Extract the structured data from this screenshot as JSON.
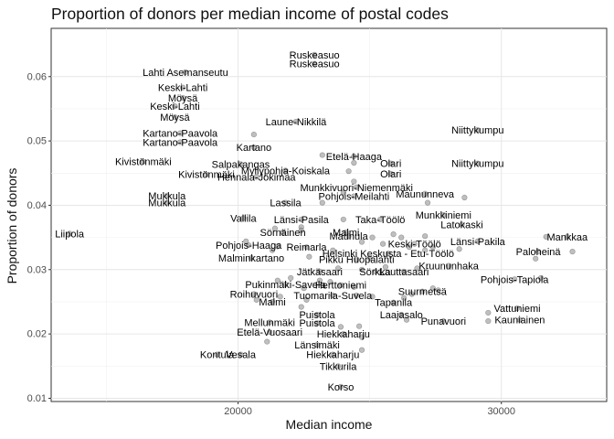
{
  "chart_data": {
    "type": "scatter",
    "title": "Proportion of donors per median income of postal codes",
    "xlabel": "Median income",
    "ylabel": "Proportion of donors",
    "xlim": [
      12900,
      34000
    ],
    "ylim": [
      0.0095,
      0.0675
    ],
    "xticks": [
      20000,
      30000
    ],
    "yticks": [
      0.01,
      0.02,
      0.03,
      0.04,
      0.05,
      0.06
    ],
    "ytick_labels": [
      "0.01",
      "0.02",
      "0.03",
      "0.04",
      "0.05",
      "0.06"
    ],
    "xtick_labels": [
      "20000",
      "30000"
    ],
    "grid": true,
    "point_color": "#8a8a8a",
    "points": [
      {
        "x": 13600,
        "y": 0.0356,
        "label": "Liipola"
      },
      {
        "x": 18000,
        "y": 0.0607,
        "label": "Lahti Asemanseutu"
      },
      {
        "x": 17900,
        "y": 0.0583,
        "label": "Keski-Lahti"
      },
      {
        "x": 17900,
        "y": 0.0567,
        "label": "Möysä"
      },
      {
        "x": 17600,
        "y": 0.0554,
        "label": "Keski-Lahti"
      },
      {
        "x": 17600,
        "y": 0.0537,
        "label": "Möysä"
      },
      {
        "x": 17800,
        "y": 0.0512,
        "label": "Kartano-Paavola"
      },
      {
        "x": 17800,
        "y": 0.0498,
        "label": "Kartano-Paavola"
      },
      {
        "x": 20600,
        "y": 0.051,
        "label": ""
      },
      {
        "x": 20600,
        "y": 0.049,
        "label": "Kartano"
      },
      {
        "x": 16400,
        "y": 0.0468,
        "label": "Kivistönmäki"
      },
      {
        "x": 18800,
        "y": 0.0448,
        "label": "Kivistönmäki"
      },
      {
        "x": 20100,
        "y": 0.0464,
        "label": "Salpakangas"
      },
      {
        "x": 21800,
        "y": 0.0454,
        "label": "Myllypohja-Koiskala"
      },
      {
        "x": 20700,
        "y": 0.0444,
        "label": "Hennala-Jokimaa"
      },
      {
        "x": 22200,
        "y": 0.053,
        "label": "Laune-Nikkilä"
      },
      {
        "x": 22900,
        "y": 0.0634,
        "label": "Ruskeasuo"
      },
      {
        "x": 22900,
        "y": 0.062,
        "label": "Ruskeasuo"
      },
      {
        "x": 17300,
        "y": 0.0415,
        "label": "Mukkula"
      },
      {
        "x": 17300,
        "y": 0.0404,
        "label": "Mukkula"
      },
      {
        "x": 20200,
        "y": 0.038,
        "label": "Vallila"
      },
      {
        "x": 21800,
        "y": 0.0404,
        "label": "Lassila"
      },
      {
        "x": 23200,
        "y": 0.0478,
        "label": ""
      },
      {
        "x": 24400,
        "y": 0.0476,
        "label": "Etelä-Haaga"
      },
      {
        "x": 24200,
        "y": 0.0453,
        "label": ""
      },
      {
        "x": 24400,
        "y": 0.0466,
        "label": ""
      },
      {
        "x": 25800,
        "y": 0.0465,
        "label": "Olari"
      },
      {
        "x": 25800,
        "y": 0.0449,
        "label": "Olari"
      },
      {
        "x": 24400,
        "y": 0.0437,
        "label": ""
      },
      {
        "x": 24500,
        "y": 0.0428,
        "label": "Munkkivuori-Niemenmäki"
      },
      {
        "x": 24400,
        "y": 0.0414,
        "label": "Pohjois-Meilahti"
      },
      {
        "x": 23200,
        "y": 0.0404,
        "label": ""
      },
      {
        "x": 24000,
        "y": 0.042,
        "label": ""
      },
      {
        "x": 29100,
        "y": 0.0517,
        "label": "Niittykumpu"
      },
      {
        "x": 29100,
        "y": 0.0465,
        "label": "Niittykumpu"
      },
      {
        "x": 28600,
        "y": 0.0412,
        "label": ""
      },
      {
        "x": 27100,
        "y": 0.0418,
        "label": "Maununneva"
      },
      {
        "x": 27200,
        "y": 0.0404,
        "label": ""
      },
      {
        "x": 27800,
        "y": 0.0385,
        "label": "Munkkiniemi"
      },
      {
        "x": 28500,
        "y": 0.037,
        "label": "Latokaski"
      },
      {
        "x": 22400,
        "y": 0.0378,
        "label": "Länsi-Pasila"
      },
      {
        "x": 22400,
        "y": 0.0366,
        "label": ""
      },
      {
        "x": 22400,
        "y": 0.0361,
        "label": ""
      },
      {
        "x": 21400,
        "y": 0.0364,
        "label": ""
      },
      {
        "x": 21700,
        "y": 0.0358,
        "label": "Sörnäinen"
      },
      {
        "x": 20300,
        "y": 0.0344,
        "label": ""
      },
      {
        "x": 20400,
        "y": 0.0338,
        "label": "Pohjois-Haaga"
      },
      {
        "x": 21500,
        "y": 0.0336,
        "label": ""
      },
      {
        "x": 21300,
        "y": 0.033,
        "label": ""
      },
      {
        "x": 20500,
        "y": 0.0318,
        "label": "Malminkartano"
      },
      {
        "x": 22600,
        "y": 0.0335,
        "label": "Reimarla"
      },
      {
        "x": 22700,
        "y": 0.032,
        "label": ""
      },
      {
        "x": 23600,
        "y": 0.033,
        "label": ""
      },
      {
        "x": 24000,
        "y": 0.0378,
        "label": ""
      },
      {
        "x": 25400,
        "y": 0.0378,
        "label": "Taka-Töölö"
      },
      {
        "x": 24100,
        "y": 0.0358,
        "label": "Malmi"
      },
      {
        "x": 24200,
        "y": 0.0352,
        "label": "Maunula"
      },
      {
        "x": 24700,
        "y": 0.0343,
        "label": ""
      },
      {
        "x": 25100,
        "y": 0.035,
        "label": ""
      },
      {
        "x": 25500,
        "y": 0.034,
        "label": ""
      },
      {
        "x": 25900,
        "y": 0.0355,
        "label": ""
      },
      {
        "x": 26200,
        "y": 0.035,
        "label": ""
      },
      {
        "x": 26500,
        "y": 0.0335,
        "label": ""
      },
      {
        "x": 26700,
        "y": 0.034,
        "label": "Keski-Töölö"
      },
      {
        "x": 27100,
        "y": 0.0352,
        "label": ""
      },
      {
        "x": 27100,
        "y": 0.033,
        "label": ""
      },
      {
        "x": 27400,
        "y": 0.0335,
        "label": ""
      },
      {
        "x": 25700,
        "y": 0.0325,
        "label": "Helsinki Keskusta - Etu-Töölö"
      },
      {
        "x": 25000,
        "y": 0.0318,
        "label": ""
      },
      {
        "x": 24500,
        "y": 0.0316,
        "label": "Pikku Huopalahti"
      },
      {
        "x": 23800,
        "y": 0.0302,
        "label": ""
      },
      {
        "x": 23100,
        "y": 0.0297,
        "label": "Jätkäsaari"
      },
      {
        "x": 24700,
        "y": 0.03,
        "label": ""
      },
      {
        "x": 25200,
        "y": 0.0297,
        "label": "Sörkka"
      },
      {
        "x": 25600,
        "y": 0.0304,
        "label": ""
      },
      {
        "x": 26300,
        "y": 0.0297,
        "label": "Lauttasaari"
      },
      {
        "x": 26800,
        "y": 0.0302,
        "label": ""
      },
      {
        "x": 28400,
        "y": 0.0332,
        "label": ""
      },
      {
        "x": 29100,
        "y": 0.0344,
        "label": "Länsi-Pakila"
      },
      {
        "x": 28000,
        "y": 0.0306,
        "label": "Kruununhaka"
      },
      {
        "x": 31700,
        "y": 0.0351,
        "label": ""
      },
      {
        "x": 32500,
        "y": 0.0351,
        "label": "Mankkaa"
      },
      {
        "x": 31400,
        "y": 0.0328,
        "label": "Paloheinä"
      },
      {
        "x": 32700,
        "y": 0.0328,
        "label": ""
      },
      {
        "x": 31300,
        "y": 0.0317,
        "label": ""
      },
      {
        "x": 21500,
        "y": 0.0283,
        "label": ""
      },
      {
        "x": 21800,
        "y": 0.0277,
        "label": "Pukinmäki-Savela"
      },
      {
        "x": 22000,
        "y": 0.0287,
        "label": ""
      },
      {
        "x": 22500,
        "y": 0.0271,
        "label": ""
      },
      {
        "x": 23100,
        "y": 0.0283,
        "label": ""
      },
      {
        "x": 23500,
        "y": 0.0281,
        "label": ""
      },
      {
        "x": 23900,
        "y": 0.0276,
        "label": "Herttoniemi"
      },
      {
        "x": 24400,
        "y": 0.0273,
        "label": ""
      },
      {
        "x": 20600,
        "y": 0.0262,
        "label": "Roihuvuori"
      },
      {
        "x": 21600,
        "y": 0.0258,
        "label": ""
      },
      {
        "x": 20700,
        "y": 0.0253,
        "label": ""
      },
      {
        "x": 21300,
        "y": 0.025,
        "label": "Malmi"
      },
      {
        "x": 22600,
        "y": 0.0253,
        "label": ""
      },
      {
        "x": 23600,
        "y": 0.026,
        "label": "Tuomarila-Suvela"
      },
      {
        "x": 24500,
        "y": 0.026,
        "label": ""
      },
      {
        "x": 25100,
        "y": 0.0258,
        "label": ""
      },
      {
        "x": 25900,
        "y": 0.0249,
        "label": "Tapanila"
      },
      {
        "x": 26300,
        "y": 0.0256,
        "label": ""
      },
      {
        "x": 26600,
        "y": 0.0262,
        "label": ""
      },
      {
        "x": 27000,
        "y": 0.0266,
        "label": "Suurmetsä"
      },
      {
        "x": 27400,
        "y": 0.0271,
        "label": ""
      },
      {
        "x": 27600,
        "y": 0.0268,
        "label": ""
      },
      {
        "x": 26200,
        "y": 0.023,
        "label": "Laajasalo"
      },
      {
        "x": 26400,
        "y": 0.0222,
        "label": ""
      },
      {
        "x": 27800,
        "y": 0.022,
        "label": "Punavuori"
      },
      {
        "x": 29500,
        "y": 0.0233,
        "label": ""
      },
      {
        "x": 29500,
        "y": 0.022,
        "label": ""
      },
      {
        "x": 30500,
        "y": 0.0285,
        "label": "Pohjois-Tapiola"
      },
      {
        "x": 31500,
        "y": 0.0287,
        "label": ""
      },
      {
        "x": 30600,
        "y": 0.024,
        "label": "Vattuniemi"
      },
      {
        "x": 30700,
        "y": 0.0222,
        "label": "Kauniainen"
      },
      {
        "x": 21200,
        "y": 0.0218,
        "label": "Mellunmäki"
      },
      {
        "x": 23000,
        "y": 0.023,
        "label": "Puistola"
      },
      {
        "x": 23000,
        "y": 0.0217,
        "label": "Puistola"
      },
      {
        "x": 22400,
        "y": 0.0242,
        "label": ""
      },
      {
        "x": 23900,
        "y": 0.0211,
        "label": ""
      },
      {
        "x": 24600,
        "y": 0.0212,
        "label": ""
      },
      {
        "x": 24000,
        "y": 0.02,
        "label": "Hiekkaharju"
      },
      {
        "x": 24700,
        "y": 0.0195,
        "label": ""
      },
      {
        "x": 21200,
        "y": 0.0203,
        "label": "Etelä-Vuosaari"
      },
      {
        "x": 21100,
        "y": 0.0188,
        "label": ""
      },
      {
        "x": 23000,
        "y": 0.0183,
        "label": "Länsimäki"
      },
      {
        "x": 23600,
        "y": 0.0168,
        "label": "Hiekkaharju"
      },
      {
        "x": 24700,
        "y": 0.0175,
        "label": ""
      },
      {
        "x": 23800,
        "y": 0.015,
        "label": "Tikkurila"
      },
      {
        "x": 19200,
        "y": 0.0168,
        "label": "Kontula"
      },
      {
        "x": 20100,
        "y": 0.0168,
        "label": "Vesala"
      },
      {
        "x": 23900,
        "y": 0.0118,
        "label": "Korso"
      }
    ]
  }
}
